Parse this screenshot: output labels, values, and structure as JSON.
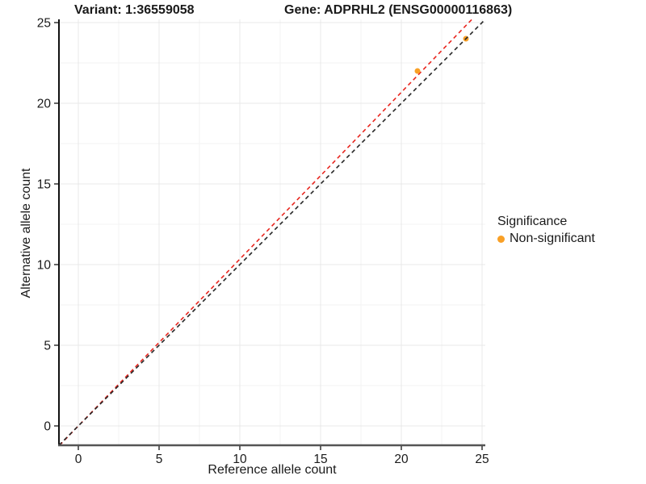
{
  "chart_data": {
    "type": "scatter",
    "titles": {
      "variant": "Variant: 1:36559058",
      "gene": "Gene: ADPRHL2 (ENSG00000116863)"
    },
    "xlabel": "Reference allele count",
    "ylabel": "Alternative allele count",
    "xlim": [
      -1.2,
      25.2
    ],
    "ylim": [
      -1.2,
      25.2
    ],
    "x_ticks": [
      0,
      5,
      10,
      15,
      20,
      25
    ],
    "y_ticks": [
      0,
      5,
      10,
      15,
      20,
      25
    ],
    "grid": true,
    "points": [
      {
        "x": 21,
        "y": 22,
        "series": "Non-significant"
      },
      {
        "x": 24,
        "y": 24,
        "series": "Non-significant"
      }
    ],
    "lines": [
      {
        "name": "fit-line",
        "style": "dashed",
        "slope": 1.034,
        "intercept": 0,
        "color": "#e8251e"
      },
      {
        "name": "identity-line",
        "style": "dashed",
        "slope": 1,
        "intercept": 0,
        "color": "#262626"
      }
    ],
    "legend": {
      "title": "Significance",
      "position": "right",
      "entries": [
        {
          "label": "Non-significant",
          "color": "#f9a026"
        }
      ]
    },
    "colors": {
      "point": "#f9a026",
      "grid_major": "#e8e8e8",
      "grid_minor": "#f3f3f3",
      "axis_left": "#111111",
      "axis_bottom": "#555555",
      "tick": "#333333",
      "text": "#1a1a1a"
    }
  }
}
